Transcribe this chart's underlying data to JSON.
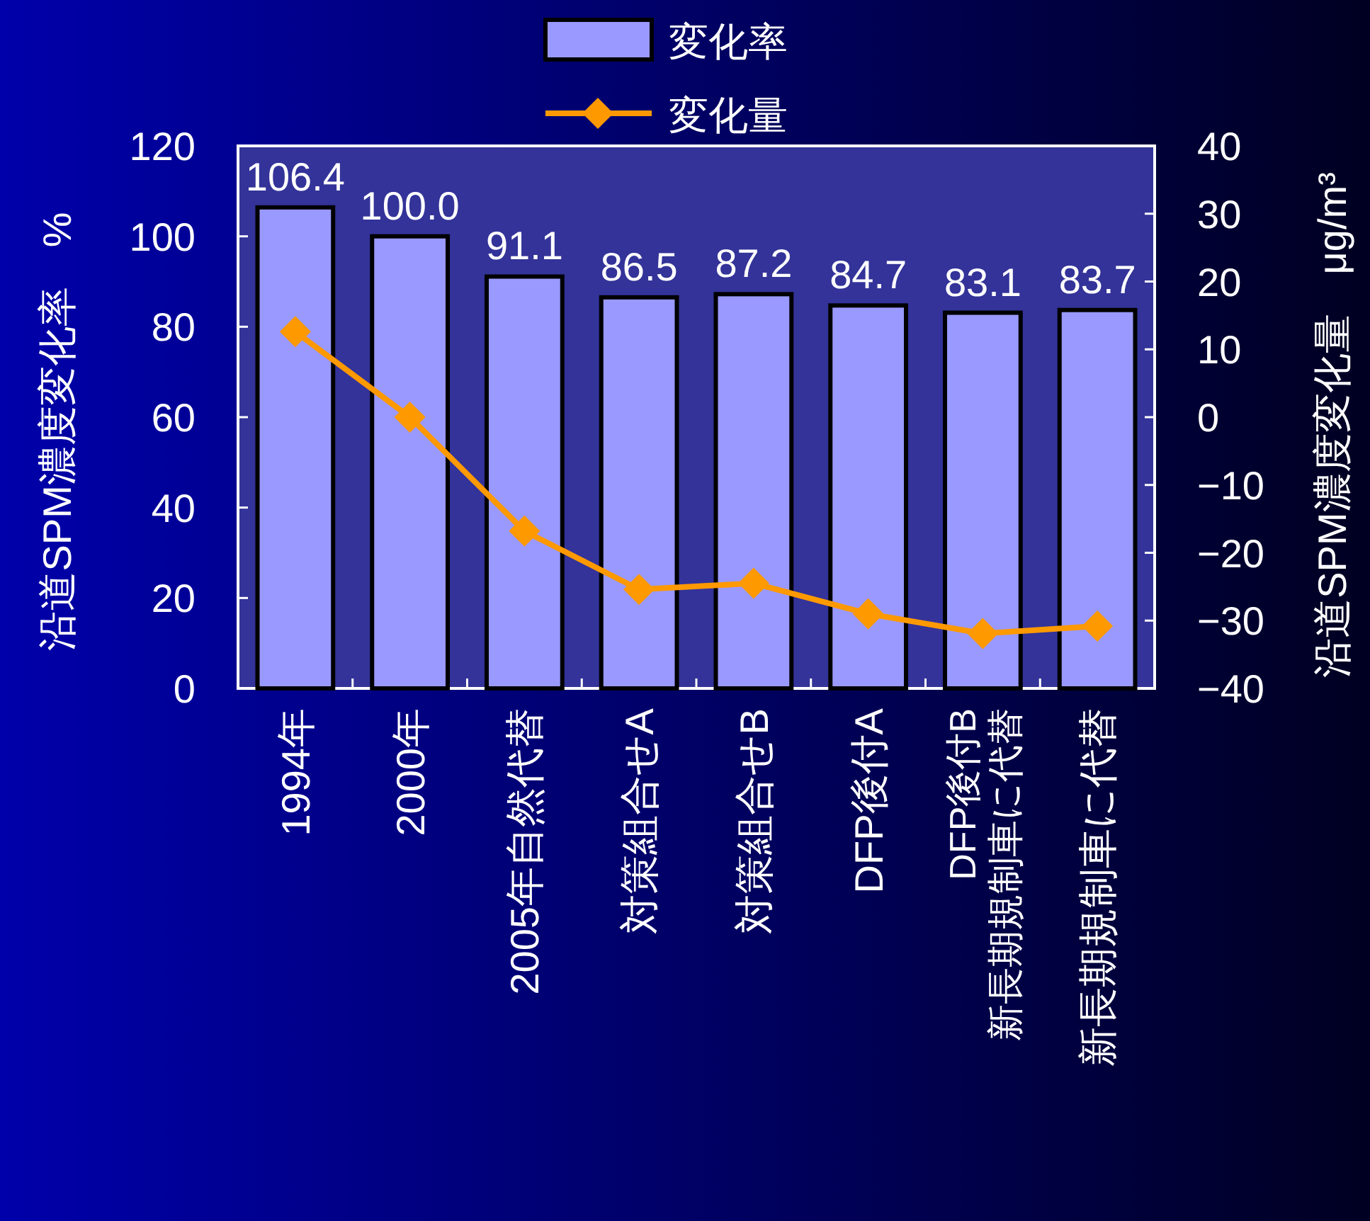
{
  "chart_data": {
    "type": "bar",
    "categories": [
      "1994年",
      "2000年",
      "2005年自然代替",
      "対策組合せA",
      "対策組合せB",
      "DFP後付A",
      "DFP後付B\n新長期規制車に代替",
      "新長期規制車に代替"
    ],
    "series": [
      {
        "name": "変化率",
        "color": "#9999ff",
        "values": [
          106.4,
          100.0,
          91.1,
          86.5,
          87.2,
          84.7,
          83.1,
          83.7
        ],
        "value_labels": [
          "106.4",
          "100.0",
          "91.1",
          "86.5",
          "87.2",
          "84.7",
          "83.1",
          "83.7"
        ]
      },
      {
        "name": "変化量",
        "type": "line",
        "axis": "y2",
        "color": "#ff9900",
        "marker": "diamond",
        "values": [
          12.6,
          0.0,
          -16.8,
          -25.4,
          -24.5,
          -29.0,
          -31.9,
          -30.8
        ]
      }
    ],
    "ylabel": "沿道SPM濃度変化率　%",
    "y2label": "沿道SPM濃度変化量　μg/m³",
    "ylim": [
      0,
      120
    ],
    "yticks": [
      0,
      20,
      40,
      60,
      80,
      100,
      120
    ],
    "y2lim": [
      -40,
      40
    ],
    "y2ticks": [
      -40,
      -30,
      -20,
      -10,
      0,
      10,
      20,
      30,
      40
    ],
    "legend": "top"
  }
}
